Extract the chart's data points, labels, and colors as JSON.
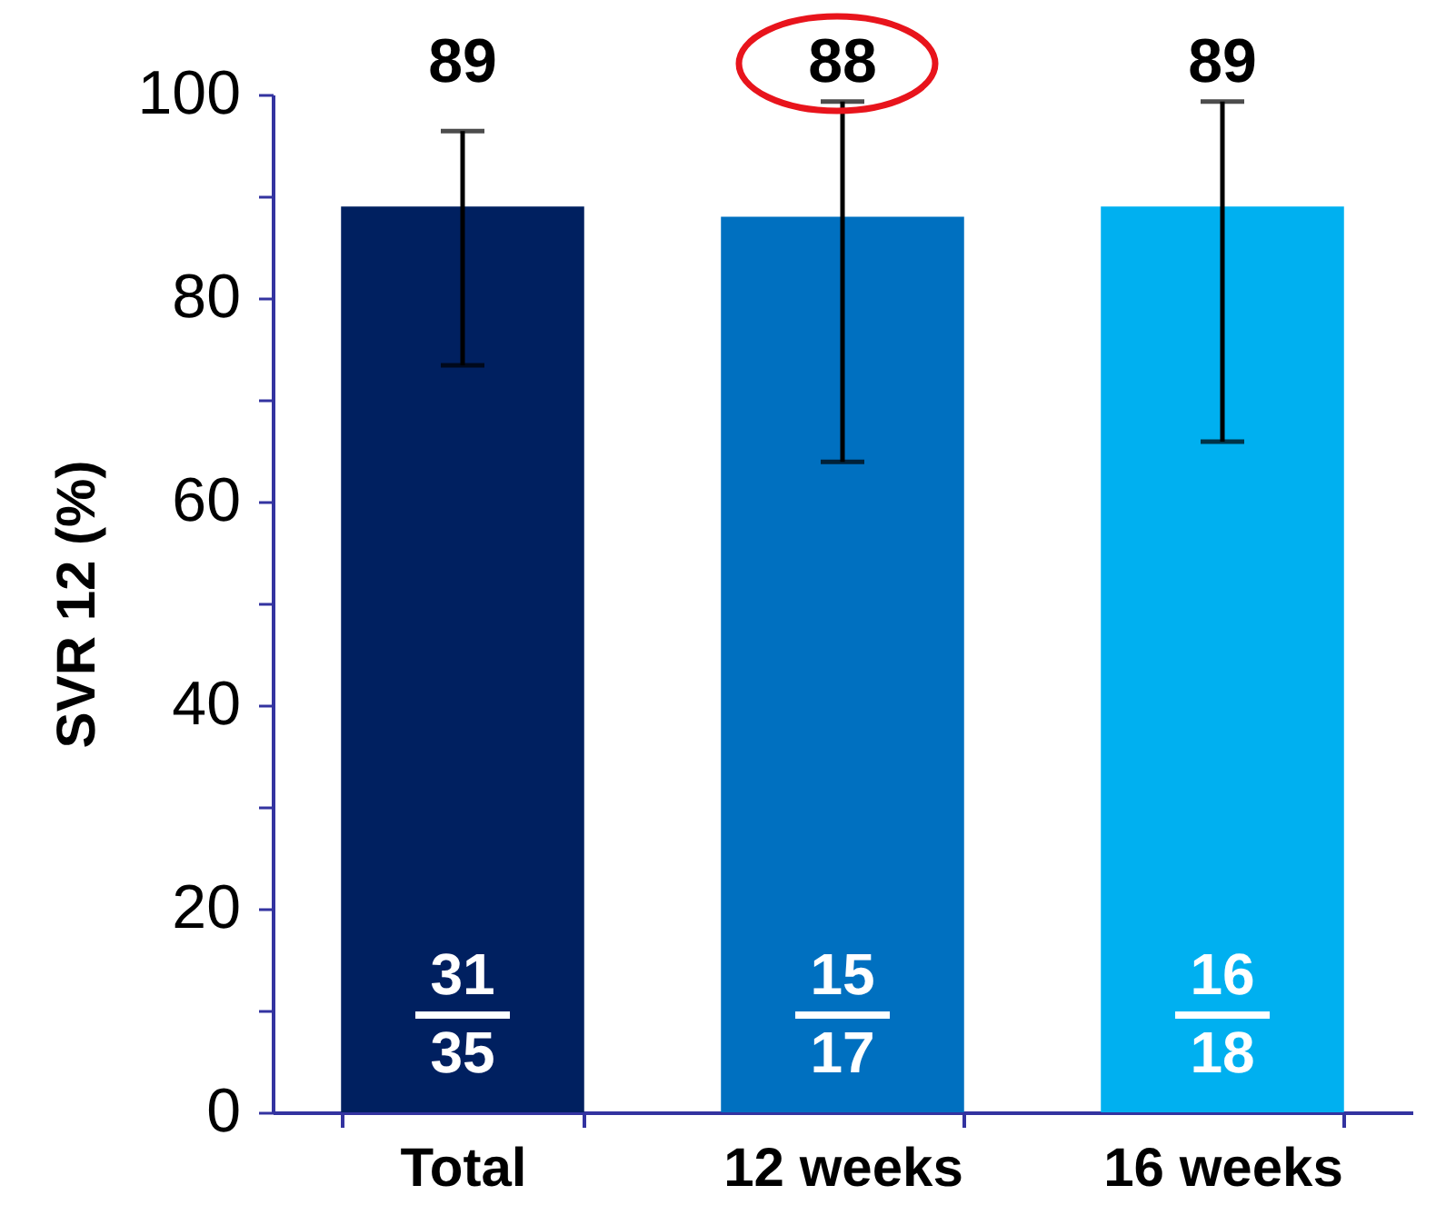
{
  "chart_data": {
    "type": "bar",
    "ylabel": "SVR 12 (%)",
    "categories": [
      "Total",
      "12 weeks",
      "16 weeks"
    ],
    "values": [
      89,
      88,
      89
    ],
    "colors": [
      "#002060",
      "#0070c0",
      "#00b0f0"
    ],
    "errors": [
      [
        73.4,
        96.4
      ],
      [
        63.9,
        99.3
      ],
      [
        65.9,
        99.3
      ]
    ],
    "data_labels": true,
    "ylim": [
      0,
      100
    ],
    "yticks": [
      0,
      {
        "value": 10,
        "label": null
      },
      20,
      {
        "value": 30,
        "label": null
      },
      40,
      {
        "value": 50,
        "label": null
      },
      60,
      {
        "value": 70,
        "label": null
      },
      80,
      {
        "value": 90,
        "label": null
      },
      100
    ],
    "grid": false,
    "legend": false,
    "annotations": [
      "31",
      "35",
      "15",
      "17",
      "16",
      "18"
    ]
  }
}
